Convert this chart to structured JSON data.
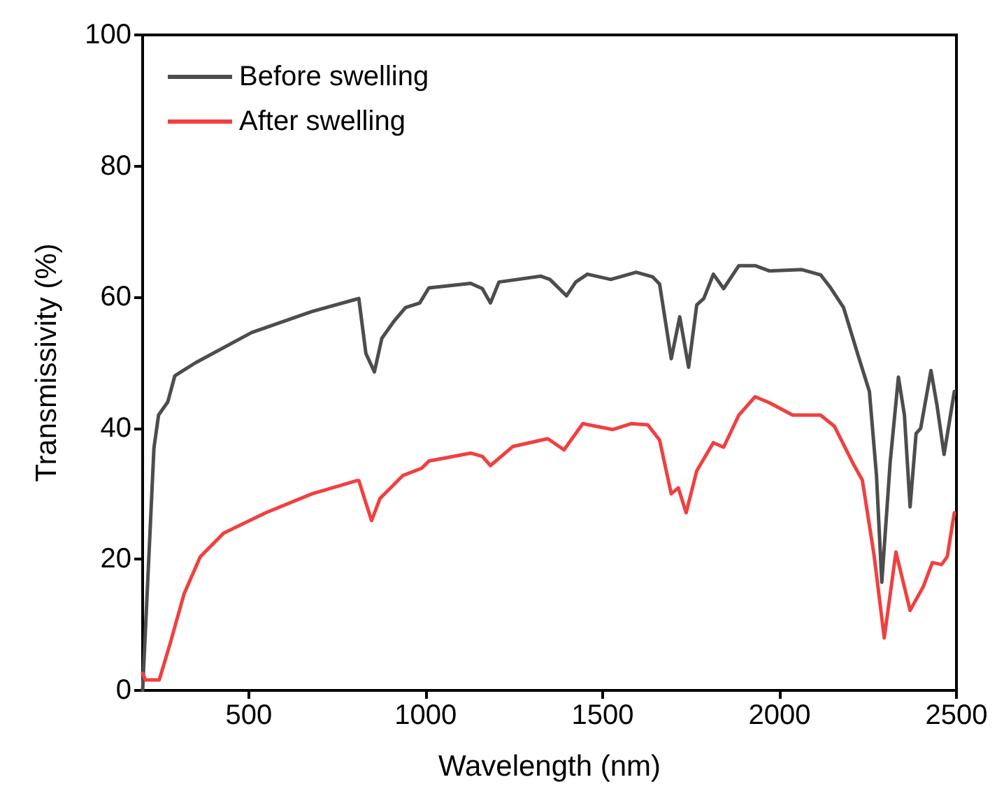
{
  "chart_data": {
    "type": "line",
    "xlabel": "Wavelength (nm)",
    "ylabel": "Transmissivity (%)",
    "xlim": [
      200,
      2500
    ],
    "xticks": [
      500,
      1000,
      1500,
      2000,
      2500
    ],
    "ylim": [
      0,
      100
    ],
    "yticks": [
      0,
      20,
      40,
      60,
      80,
      100
    ],
    "grid": false,
    "legend": "top left",
    "marker": "none",
    "line_style": "solid",
    "series": [
      {
        "name": "Before swelling",
        "color": "#4d4d4d",
        "x": [
          200,
          232,
          245,
          271,
          291,
          350,
          508,
          678,
          805,
          811,
          831,
          855,
          876,
          910,
          943,
          983,
          1009,
          1127,
          1160,
          1183,
          1207,
          1325,
          1351,
          1398,
          1424,
          1457,
          1523,
          1595,
          1641,
          1661,
          1694,
          1718,
          1743,
          1766,
          1786,
          1813,
          1842,
          1885,
          1931,
          1971,
          2063,
          2116,
          2142,
          2181,
          2221,
          2254,
          2274,
          2289,
          2313,
          2336,
          2353,
          2369,
          2386,
          2399,
          2428,
          2445,
          2465,
          2494
        ],
        "values": [
          0,
          37,
          42,
          44,
          48,
          50,
          54.6,
          57.8,
          59.7,
          59.8,
          51.4,
          48.6,
          53.7,
          56.3,
          58.4,
          59.1,
          61.4,
          62.1,
          61.3,
          59.1,
          62.3,
          63.2,
          62.7,
          60.2,
          62.3,
          63.5,
          62.7,
          63.8,
          63.1,
          62,
          50.6,
          57,
          49.3,
          58.8,
          59.8,
          63.5,
          61.3,
          64.8,
          64.8,
          64,
          64.2,
          63.4,
          61.6,
          58.4,
          51.3,
          45.6,
          32.8,
          16.5,
          35,
          47.8,
          42,
          28,
          39.2,
          40,
          48.8,
          43.5,
          36,
          45.6
        ]
      },
      {
        "name": "After swelling",
        "color": "#f04040",
        "x": [
          200,
          208,
          247,
          278,
          317,
          363,
          429,
          548,
          679,
          805,
          811,
          831,
          847,
          871,
          936,
          989,
          1009,
          1127,
          1160,
          1183,
          1246,
          1345,
          1391,
          1444,
          1529,
          1582,
          1628,
          1661,
          1694,
          1714,
          1736,
          1766,
          1813,
          1842,
          1885,
          1931,
          1971,
          2037,
          2116,
          2155,
          2208,
          2234,
          2267,
          2296,
          2329,
          2369,
          2406,
          2432,
          2458,
          2474,
          2494
        ],
        "values": [
          2.6,
          1.6,
          1.6,
          7.2,
          14.7,
          20.4,
          24,
          27.1,
          30,
          32,
          32,
          28.6,
          25.9,
          29.3,
          32.8,
          33.9,
          35,
          36.2,
          35.7,
          34.3,
          37.2,
          38.4,
          36.7,
          40.7,
          39.8,
          40.7,
          40.5,
          38.2,
          30,
          30.9,
          27.1,
          33.5,
          37.8,
          37.1,
          42,
          44.8,
          43.9,
          42,
          42,
          40.3,
          34.6,
          32.1,
          20.7,
          8,
          21.1,
          12.2,
          15.8,
          19.5,
          19.2,
          20.4,
          27.1
        ]
      }
    ]
  }
}
